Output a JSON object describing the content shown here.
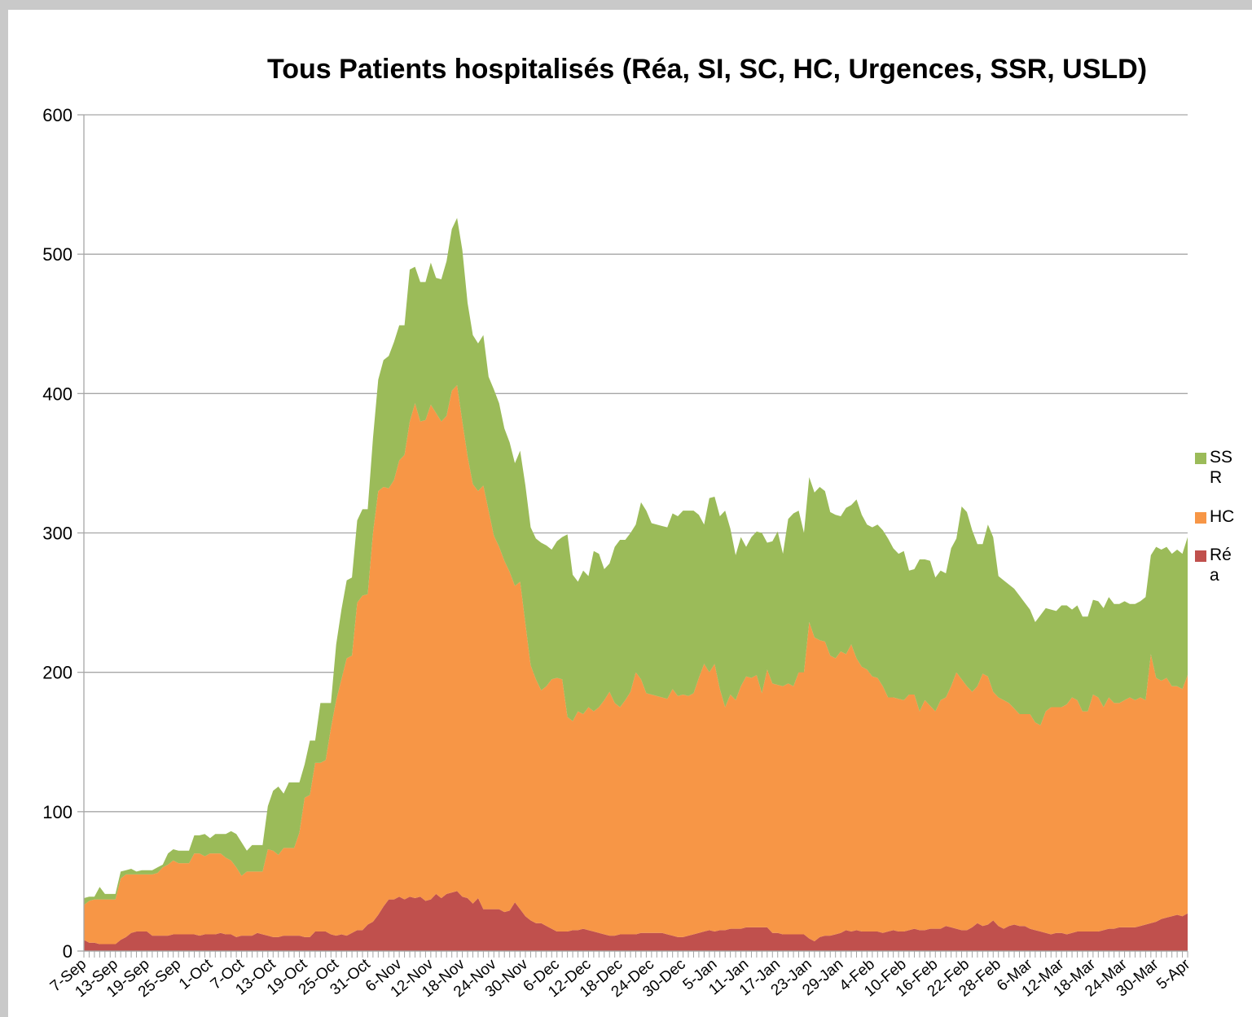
{
  "chart_data": {
    "type": "stacked-area",
    "title": "Tous Patients hospitalisés (Réa, SI, SC, HC, Urgences, SSR, USLD)",
    "categories": [
      "7-Sep",
      null,
      null,
      null,
      null,
      null,
      "13-Sep",
      null,
      null,
      null,
      null,
      null,
      "19-Sep",
      null,
      null,
      null,
      null,
      null,
      "25-Sep",
      null,
      null,
      null,
      null,
      null,
      "1-Oct",
      null,
      null,
      null,
      null,
      null,
      "7-Oct",
      null,
      null,
      null,
      null,
      null,
      "13-Oct",
      null,
      null,
      null,
      null,
      null,
      "19-Oct",
      null,
      null,
      null,
      null,
      null,
      "25-Oct",
      null,
      null,
      null,
      null,
      null,
      "31-Oct",
      null,
      null,
      null,
      null,
      null,
      "6-Nov",
      null,
      null,
      null,
      null,
      null,
      "12-Nov",
      null,
      null,
      null,
      null,
      null,
      "18-Nov",
      null,
      null,
      null,
      null,
      null,
      "24-Nov",
      null,
      null,
      null,
      null,
      null,
      "30-Nov",
      null,
      null,
      null,
      null,
      null,
      "6-Dec",
      null,
      null,
      null,
      null,
      null,
      "12-Dec",
      null,
      null,
      null,
      null,
      null,
      "18-Dec",
      null,
      null,
      null,
      null,
      null,
      "24-Dec",
      null,
      null,
      null,
      null,
      null,
      "30-Dec",
      null,
      null,
      null,
      null,
      null,
      "5-Jan",
      null,
      null,
      null,
      null,
      null,
      "11-Jan",
      null,
      null,
      null,
      null,
      null,
      "17-Jan",
      null,
      null,
      null,
      null,
      null,
      "23-Jan",
      null,
      null,
      null,
      null,
      null,
      "29-Jan",
      null,
      null,
      null,
      null,
      null,
      "4-Feb",
      null,
      null,
      null,
      null,
      null,
      "10-Feb",
      null,
      null,
      null,
      null,
      null,
      "16-Feb",
      null,
      null,
      null,
      null,
      null,
      "22-Feb",
      null,
      null,
      null,
      null,
      null,
      "28-Feb",
      null,
      null,
      null,
      null,
      null,
      "6-Mar",
      null,
      null,
      null,
      null,
      null,
      "12-Mar",
      null,
      null,
      null,
      null,
      null,
      "18-Mar",
      null,
      null,
      null,
      null,
      null,
      "24-Mar",
      null,
      null,
      null,
      null,
      null,
      "30-Mar",
      null,
      null,
      null,
      null,
      null,
      "5-Apr"
    ],
    "series": [
      {
        "name": "Réa",
        "color": "#c0504d",
        "values": [
          8,
          6,
          6,
          5,
          5,
          5,
          5,
          8,
          10,
          13,
          14,
          14,
          14,
          11,
          11,
          11,
          11,
          12,
          12,
          12,
          12,
          12,
          11,
          12,
          12,
          12,
          13,
          12,
          12,
          10,
          11,
          11,
          11,
          13,
          12,
          11,
          10,
          10,
          11,
          11,
          11,
          11,
          10,
          10,
          14,
          14,
          14,
          12,
          11,
          12,
          11,
          13,
          15,
          15,
          19,
          21,
          26,
          32,
          37,
          37,
          39,
          37,
          39,
          38,
          39,
          36,
          37,
          41,
          38,
          41,
          42,
          43,
          39,
          38,
          34,
          38,
          30,
          30,
          30,
          30,
          28,
          29,
          35,
          30,
          25,
          22,
          20,
          20,
          18,
          16,
          14,
          14,
          14,
          15,
          15,
          16,
          15,
          14,
          13,
          12,
          11,
          11,
          12,
          12,
          12,
          12,
          13,
          13,
          13,
          13,
          13,
          12,
          11,
          10,
          10,
          11,
          12,
          13,
          14,
          15,
          14,
          15,
          15,
          16,
          16,
          16,
          17,
          17,
          17,
          17,
          17,
          13,
          13,
          12,
          12,
          12,
          12,
          12,
          9,
          7,
          10,
          11,
          11,
          12,
          13,
          15,
          14,
          15,
          14,
          14,
          14,
          14,
          13,
          14,
          15,
          14,
          14,
          15,
          16,
          15,
          15,
          16,
          16,
          16,
          18,
          17,
          16,
          15,
          15,
          17,
          20,
          18,
          19,
          22,
          18,
          16,
          18,
          19,
          18,
          18,
          16,
          15,
          14,
          13,
          12,
          13,
          13,
          12,
          13,
          14,
          14,
          14,
          14,
          14,
          15,
          16,
          16,
          17,
          17,
          17,
          17,
          18,
          19,
          20,
          21,
          23,
          24,
          25,
          26,
          25,
          27
        ]
      },
      {
        "name": "HC",
        "color": "#f79646",
        "values": [
          25,
          30,
          31,
          32,
          32,
          32,
          32,
          44,
          45,
          42,
          41,
          41,
          41,
          44,
          45,
          49,
          51,
          53,
          51,
          51,
          51,
          58,
          59,
          56,
          58,
          58,
          57,
          55,
          53,
          50,
          43,
          46,
          46,
          44,
          45,
          62,
          62,
          59,
          63,
          63,
          63,
          74,
          100,
          102,
          121,
          121,
          123,
          148,
          169,
          183,
          199,
          199,
          235,
          240,
          237,
          279,
          304,
          301,
          295,
          301,
          313,
          319,
          341,
          355,
          341,
          345,
          355,
          345,
          342,
          343,
          360,
          363,
          341,
          317,
          301,
          292,
          304,
          286,
          268,
          260,
          252,
          243,
          227,
          235,
          210,
          183,
          175,
          167,
          172,
          179,
          182,
          181,
          154,
          150,
          157,
          154,
          160,
          158,
          162,
          168,
          175,
          167,
          163,
          168,
          174,
          188,
          182,
          172,
          171,
          170,
          169,
          169,
          177,
          173,
          174,
          172,
          173,
          183,
          192,
          185,
          192,
          173,
          160,
          168,
          164,
          174,
          180,
          179,
          181,
          168,
          185,
          179,
          178,
          178,
          180,
          178,
          188,
          188,
          227,
          218,
          213,
          211,
          201,
          198,
          202,
          198,
          206,
          195,
          190,
          188,
          183,
          182,
          177,
          168,
          167,
          167,
          166,
          169,
          168,
          157,
          165,
          160,
          156,
          164,
          164,
          173,
          184,
          180,
          175,
          169,
          170,
          181,
          178,
          164,
          164,
          164,
          160,
          155,
          152,
          152,
          154,
          149,
          148,
          159,
          163,
          162,
          162,
          165,
          169,
          166,
          158,
          158,
          170,
          168,
          160,
          166,
          162,
          161,
          163,
          165,
          163,
          164,
          161,
          193,
          175,
          171,
          172,
          165,
          164,
          163,
          171
        ]
      },
      {
        "name": "SSR",
        "color": "#9bbb59",
        "values": [
          5,
          3,
          2,
          9,
          4,
          4,
          4,
          5,
          3,
          4,
          2,
          3,
          3,
          3,
          4,
          2,
          8,
          8,
          9,
          9,
          9,
          13,
          13,
          16,
          11,
          14,
          14,
          17,
          21,
          24,
          24,
          15,
          19,
          19,
          19,
          31,
          43,
          49,
          39,
          47,
          47,
          36,
          24,
          39,
          16,
          43,
          41,
          18,
          40,
          50,
          56,
          56,
          59,
          62,
          61,
          68,
          80,
          91,
          95,
          99,
          97,
          93,
          109,
          98,
          100,
          99,
          102,
          97,
          102,
          111,
          116,
          120,
          123,
          110,
          107,
          106,
          108,
          96,
          105,
          103,
          95,
          93,
          88,
          94,
          99,
          99,
          101,
          106,
          101,
          93,
          98,
          102,
          131,
          105,
          93,
          103,
          94,
          115,
          110,
          94,
          92,
          112,
          120,
          115,
          114,
          106,
          127,
          131,
          123,
          123,
          123,
          123,
          126,
          129,
          132,
          133,
          131,
          117,
          100,
          125,
          120,
          124,
          141,
          119,
          104,
          107,
          93,
          101,
          103,
          115,
          91,
          102,
          110,
          95,
          118,
          124,
          116,
          100,
          104,
          104,
          110,
          108,
          103,
          103,
          97,
          105,
          100,
          114,
          109,
          104,
          107,
          110,
          112,
          114,
          107,
          104,
          107,
          89,
          90,
          109,
          101,
          104,
          96,
          93,
          89,
          99,
          96,
          124,
          125,
          116,
          102,
          93,
          109,
          111,
          87,
          86,
          85,
          86,
          85,
          80,
          75,
          72,
          79,
          74,
          70,
          69,
          73,
          71,
          63,
          68,
          68,
          68,
          68,
          69,
          71,
          72,
          71,
          71,
          71,
          67,
          69,
          69,
          74,
          71,
          94,
          94,
          94,
          95,
          98,
          97,
          99
        ]
      }
    ],
    "ylim": [
      0,
      600
    ],
    "yticks": [
      0,
      100,
      200,
      300,
      400,
      500,
      600
    ],
    "grid": true,
    "legend": "right"
  }
}
